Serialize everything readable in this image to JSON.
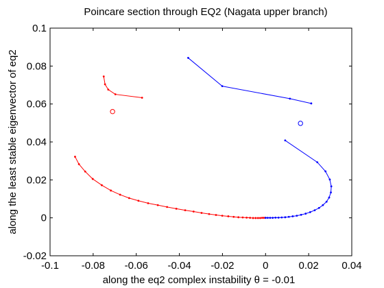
{
  "chart_data": {
    "type": "line",
    "title": "Poincare section through EQ2 (Nagata upper branch)",
    "xlabel": "along the eq2 complex instability θ = -0.01",
    "ylabel": "along the least stable eigenvector of eq2",
    "xlim": [
      -0.1,
      0.04
    ],
    "ylim": [
      -0.02,
      0.1
    ],
    "xticks": [
      -0.1,
      -0.08,
      -0.06,
      -0.04,
      -0.02,
      0,
      0.02,
      0.04
    ],
    "yticks": [
      -0.02,
      0,
      0.02,
      0.04,
      0.06,
      0.08,
      0.1
    ],
    "xtick_labels": [
      "-0.1",
      "-0.08",
      "-0.06",
      "-0.04",
      "-0.02",
      "0",
      "0.02",
      "0.04"
    ],
    "ytick_labels": [
      "-0.02",
      "0",
      "0.02",
      "0.04",
      "0.06",
      "0.08",
      "0.1"
    ],
    "grid": false,
    "series": [
      {
        "color": "#ff0000",
        "marker": "dot",
        "points": [
          [
            -0.0884,
            0.0322
          ],
          [
            -0.0866,
            0.0283
          ],
          [
            -0.0837,
            0.0244
          ],
          [
            -0.0802,
            0.0205
          ],
          [
            -0.076,
            0.0172
          ],
          [
            -0.0718,
            0.0144
          ],
          [
            -0.0675,
            0.0122
          ],
          [
            -0.0633,
            0.0104
          ],
          [
            -0.059,
            0.009
          ],
          [
            -0.0545,
            0.0077
          ],
          [
            -0.05,
            0.0067
          ],
          [
            -0.0457,
            0.0057
          ],
          [
            -0.0414,
            0.0048
          ],
          [
            -0.0373,
            0.004
          ],
          [
            -0.0334,
            0.0033
          ],
          [
            -0.0297,
            0.0026
          ],
          [
            -0.0262,
            0.002
          ],
          [
            -0.023,
            0.0015
          ],
          [
            -0.0201,
            0.0011
          ],
          [
            -0.0173,
            0.0008
          ],
          [
            -0.0148,
            0.0005
          ],
          [
            -0.0126,
            0.0003
          ],
          [
            -0.0106,
            0.0002
          ],
          [
            -0.0088,
            0.0001
          ],
          [
            -0.0072,
            0.0
          ],
          [
            -0.0058,
            -0.0001
          ],
          [
            -0.0046,
            -0.0001
          ],
          [
            -0.0035,
            -0.0001
          ],
          [
            -0.0025,
            -0.0001
          ],
          [
            -0.0016,
            0.0
          ],
          [
            -0.0008,
            0.0
          ],
          [
            0.0,
            0.0
          ]
        ]
      },
      {
        "color": "#ff0000",
        "marker": "dot",
        "points": [
          [
            -0.0751,
            0.0745
          ],
          [
            -0.0745,
            0.0704
          ],
          [
            -0.073,
            0.0676
          ],
          [
            -0.0697,
            0.0651
          ],
          [
            -0.0573,
            0.0633
          ]
        ]
      },
      {
        "color": "#0000ff",
        "marker": "dot",
        "points": [
          [
            0.0,
            0.0
          ],
          [
            0.001,
            0.0
          ],
          [
            0.0021,
            0.0
          ],
          [
            0.0033,
            0.0
          ],
          [
            0.0046,
            0.0001
          ],
          [
            0.006,
            0.0001
          ],
          [
            0.0075,
            0.0002
          ],
          [
            0.0091,
            0.0003
          ],
          [
            0.0108,
            0.0005
          ],
          [
            0.0126,
            0.0008
          ],
          [
            0.0145,
            0.0011
          ],
          [
            0.0165,
            0.0016
          ],
          [
            0.0186,
            0.0022
          ],
          [
            0.0207,
            0.003
          ],
          [
            0.0228,
            0.004
          ],
          [
            0.0248,
            0.0052
          ],
          [
            0.0266,
            0.0067
          ],
          [
            0.0283,
            0.0085
          ],
          [
            0.0295,
            0.0107
          ],
          [
            0.0303,
            0.0134
          ],
          [
            0.0305,
            0.0166
          ],
          [
            0.0298,
            0.0202
          ],
          [
            0.0278,
            0.0245
          ],
          [
            0.024,
            0.0293
          ],
          [
            0.0091,
            0.0408
          ]
        ]
      },
      {
        "color": "#0000ff",
        "marker": "dot",
        "points": [
          [
            -0.0359,
            0.0843
          ],
          [
            -0.0201,
            0.0694
          ],
          [
            0.0113,
            0.0628
          ],
          [
            0.0212,
            0.0603
          ]
        ]
      },
      {
        "color": "#ff0000",
        "marker": "circle",
        "points": [
          [
            -0.071,
            0.056
          ]
        ]
      },
      {
        "color": "#0000ff",
        "marker": "circle",
        "points": [
          [
            0.0162,
            0.0498
          ]
        ]
      }
    ]
  }
}
